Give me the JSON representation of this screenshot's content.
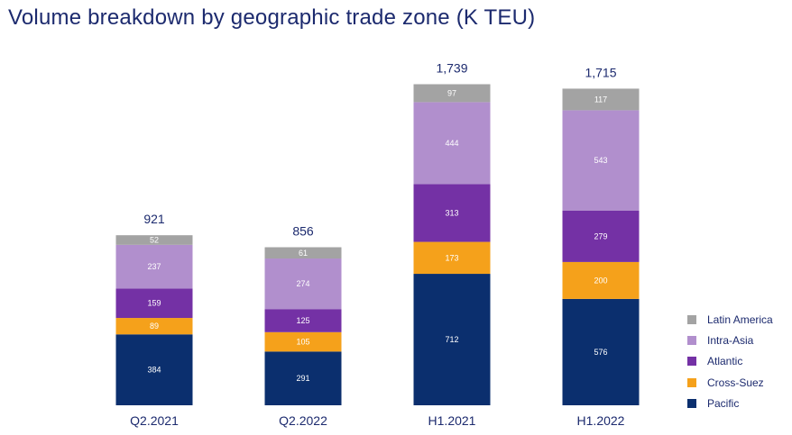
{
  "chart_data": {
    "type": "bar",
    "stacked": true,
    "title": "Volume breakdown by geographic trade zone (K TEU)",
    "categories": [
      "Q2.2021",
      "Q2.2022",
      "H1.2021",
      "H1.2022"
    ],
    "totals": [
      "921",
      "856",
      "1,739",
      "1,715"
    ],
    "series": [
      {
        "name": "Pacific",
        "color": "#0b2f6e",
        "values": [
          384,
          291,
          712,
          576
        ]
      },
      {
        "name": "Cross-Suez",
        "color": "#f5a11b",
        "values": [
          89,
          105,
          173,
          200
        ]
      },
      {
        "name": "Atlantic",
        "color": "#7431a5",
        "values": [
          159,
          125,
          313,
          279
        ]
      },
      {
        "name": "Intra-Asia",
        "color": "#b18fcd",
        "values": [
          237,
          274,
          444,
          543
        ]
      },
      {
        "name": "Latin America",
        "color": "#a3a3a3",
        "values": [
          52,
          61,
          97,
          117
        ]
      }
    ],
    "legend_position": "right",
    "legend_order": [
      "Latin America",
      "Intra-Asia",
      "Atlantic",
      "Cross-Suez",
      "Pacific"
    ],
    "grid": false
  }
}
